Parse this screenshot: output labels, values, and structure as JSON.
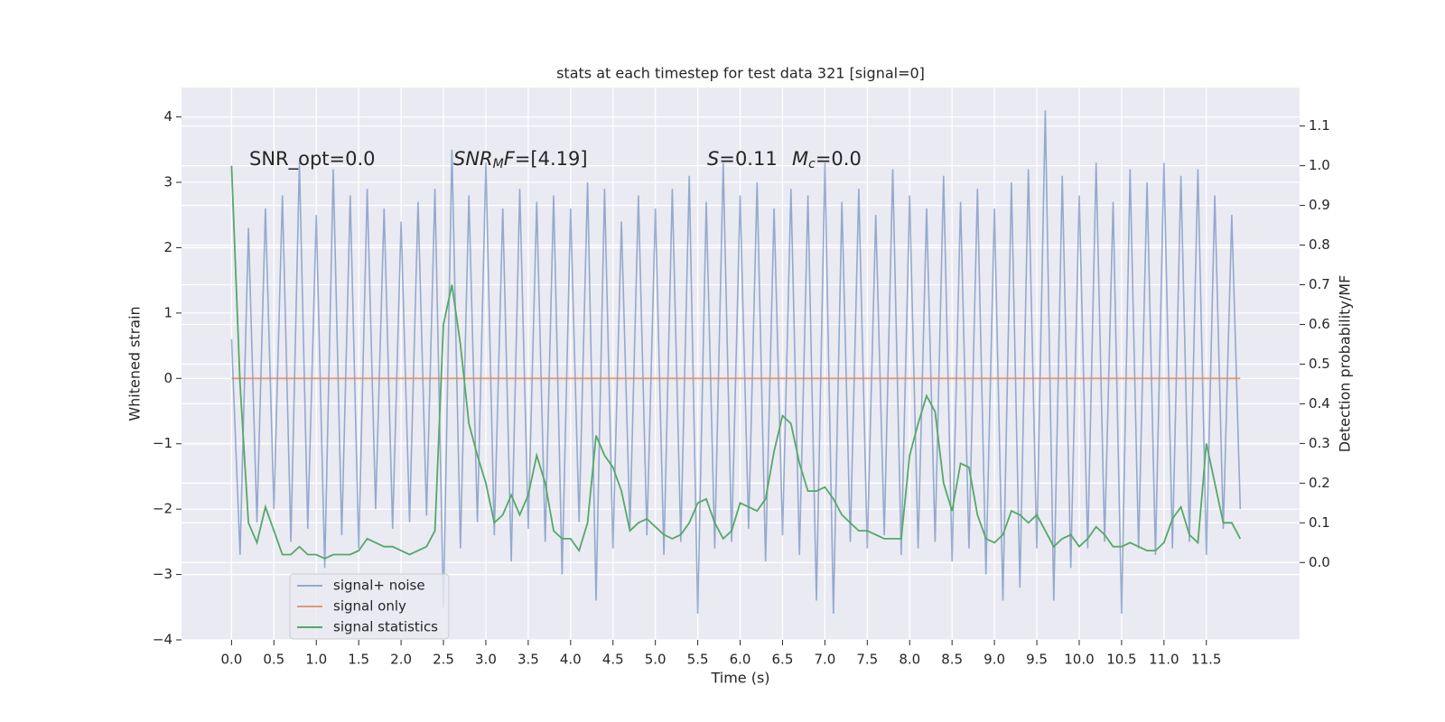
{
  "chart_data": {
    "type": "line",
    "title": "stats at each timestep for test data 321 [signal=0]",
    "xlabel": "Time (s)",
    "ylabel": "Whitened strain",
    "y2label": "Detection probability/MF",
    "annotations": [
      [
        {
          "text": "SNR_opt=0.0"
        }
      ],
      [
        {
          "text": "SNR",
          "style": "italic"
        },
        {
          "text": "M",
          "style": "sub"
        },
        {
          "text": "F",
          "style": "italic"
        },
        {
          "text": "=[4.19]"
        }
      ],
      [
        {
          "text": "S",
          "style": "italic"
        },
        {
          "text": "=0.11"
        }
      ],
      [
        {
          "text": "M",
          "style": "italic"
        },
        {
          "text": "c",
          "style": "sub"
        },
        {
          "text": "=0.0"
        }
      ]
    ],
    "x": [
      0.0,
      0.1,
      0.2,
      0.3,
      0.4,
      0.5,
      0.6,
      0.7,
      0.8,
      0.9,
      1.0,
      1.1,
      1.2,
      1.3,
      1.4,
      1.5,
      1.6,
      1.7,
      1.8,
      1.9,
      2.0,
      2.1,
      2.2,
      2.3,
      2.4,
      2.5,
      2.6,
      2.7,
      2.8,
      2.9,
      3.0,
      3.1,
      3.2,
      3.3,
      3.4,
      3.5,
      3.6,
      3.7,
      3.8,
      3.9,
      4.0,
      4.1,
      4.2,
      4.3,
      4.4,
      4.5,
      4.6,
      4.7,
      4.8,
      4.9,
      5.0,
      5.1,
      5.2,
      5.3,
      5.4,
      5.5,
      5.6,
      5.7,
      5.8,
      5.9,
      6.0,
      6.1,
      6.2,
      6.3,
      6.4,
      6.5,
      6.6,
      6.7,
      6.8,
      6.9,
      7.0,
      7.1,
      7.2,
      7.3,
      7.4,
      7.5,
      7.6,
      7.7,
      7.8,
      7.9,
      8.0,
      8.1,
      8.2,
      8.3,
      8.4,
      8.5,
      8.6,
      8.7,
      8.8,
      8.9,
      9.0,
      9.1,
      9.2,
      9.3,
      9.4,
      9.5,
      9.6,
      9.7,
      9.8,
      9.9,
      10.0,
      10.1,
      10.2,
      10.3,
      10.4,
      10.5,
      10.6,
      10.7,
      10.8,
      10.9,
      11.0,
      11.1,
      11.2,
      11.3,
      11.4,
      11.5,
      11.6,
      11.7,
      11.8,
      11.9
    ],
    "series": [
      {
        "name": "signal+ noise",
        "color": "#4c72b0",
        "opacity": 0.55,
        "values": [
          0.6,
          -2.7,
          2.3,
          -2.2,
          2.6,
          -2.0,
          2.8,
          -2.5,
          3.3,
          -2.3,
          2.5,
          -2.9,
          3.2,
          -2.4,
          2.8,
          -2.6,
          2.9,
          -2.0,
          2.6,
          -2.3,
          2.4,
          -2.2,
          2.7,
          -2.1,
          2.9,
          -3.5,
          3.5,
          -2.6,
          2.8,
          -2.2,
          3.3,
          -2.4,
          2.6,
          -2.8,
          2.9,
          -2.3,
          2.7,
          -2.5,
          2.8,
          -3.0,
          2.6,
          -2.2,
          3.0,
          -3.4,
          2.9,
          -2.6,
          2.4,
          -2.3,
          2.8,
          -2.4,
          2.6,
          -2.7,
          2.9,
          -2.5,
          3.1,
          -3.6,
          2.7,
          -2.6,
          3.3,
          -2.5,
          2.8,
          -2.3,
          3.0,
          -2.8,
          2.6,
          -2.4,
          2.9,
          -2.7,
          2.8,
          -3.4,
          3.3,
          -3.6,
          2.7,
          -2.5,
          2.9,
          -2.6,
          2.5,
          -2.4,
          3.2,
          -2.7,
          2.8,
          -2.6,
          2.6,
          -2.5,
          3.1,
          -2.8,
          2.7,
          -2.6,
          2.9,
          -3.0,
          2.6,
          -3.4,
          3.0,
          -3.2,
          3.2,
          -2.6,
          4.1,
          -3.4,
          3.1,
          -2.9,
          2.8,
          -2.6,
          3.3,
          -2.5,
          2.7,
          -3.6,
          3.2,
          -2.6,
          3.0,
          -2.7,
          3.3,
          -2.6,
          3.1,
          -2.5,
          3.2,
          -2.7,
          2.8,
          -2.3,
          2.5,
          -2.0
        ]
      },
      {
        "name": "signal only",
        "color": "#dd8452",
        "opacity": 0.8,
        "values": [
          0,
          0,
          0,
          0,
          0,
          0,
          0,
          0,
          0,
          0,
          0,
          0,
          0,
          0,
          0,
          0,
          0,
          0,
          0,
          0,
          0,
          0,
          0,
          0,
          0,
          0,
          0,
          0,
          0,
          0,
          0,
          0,
          0,
          0,
          0,
          0,
          0,
          0,
          0,
          0,
          0,
          0,
          0,
          0,
          0,
          0,
          0,
          0,
          0,
          0,
          0,
          0,
          0,
          0,
          0,
          0,
          0,
          0,
          0,
          0,
          0,
          0,
          0,
          0,
          0,
          0,
          0,
          0,
          0,
          0,
          0,
          0,
          0,
          0,
          0,
          0,
          0,
          0,
          0,
          0,
          0,
          0,
          0,
          0,
          0,
          0,
          0,
          0,
          0,
          0,
          0,
          0,
          0,
          0,
          0,
          0,
          0,
          0,
          0,
          0,
          0,
          0,
          0,
          0,
          0,
          0,
          0,
          0,
          0,
          0,
          0,
          0,
          0,
          0,
          0,
          0,
          0,
          0,
          0,
          0
        ]
      },
      {
        "name": "signal statistics",
        "color": "#55a868",
        "opacity": 1,
        "axis": "y2",
        "values": [
          1.0,
          0.45,
          0.1,
          0.05,
          0.14,
          0.08,
          0.02,
          0.02,
          0.04,
          0.02,
          0.02,
          0.01,
          0.02,
          0.02,
          0.02,
          0.03,
          0.06,
          0.05,
          0.04,
          0.04,
          0.03,
          0.02,
          0.03,
          0.04,
          0.08,
          0.6,
          0.7,
          0.55,
          0.35,
          0.27,
          0.2,
          0.1,
          0.12,
          0.17,
          0.12,
          0.17,
          0.27,
          0.2,
          0.08,
          0.06,
          0.06,
          0.03,
          0.1,
          0.32,
          0.27,
          0.24,
          0.18,
          0.08,
          0.1,
          0.11,
          0.09,
          0.07,
          0.06,
          0.07,
          0.1,
          0.15,
          0.16,
          0.1,
          0.06,
          0.08,
          0.15,
          0.14,
          0.13,
          0.16,
          0.28,
          0.37,
          0.35,
          0.25,
          0.18,
          0.18,
          0.19,
          0.16,
          0.12,
          0.1,
          0.08,
          0.08,
          0.07,
          0.06,
          0.06,
          0.06,
          0.27,
          0.35,
          0.42,
          0.38,
          0.2,
          0.13,
          0.25,
          0.24,
          0.12,
          0.06,
          0.05,
          0.07,
          0.13,
          0.12,
          0.1,
          0.12,
          0.08,
          0.04,
          0.06,
          0.07,
          0.04,
          0.06,
          0.09,
          0.07,
          0.04,
          0.04,
          0.05,
          0.04,
          0.03,
          0.03,
          0.05,
          0.11,
          0.14,
          0.07,
          0.05,
          0.3,
          0.2,
          0.1,
          0.1,
          0.06
        ]
      }
    ],
    "xlim": [
      -0.59,
      12.6
    ],
    "ylim": [
      -4,
      4.45
    ],
    "y2lim": [
      -0.195,
      1.197
    ],
    "xticks": [
      {
        "value": 0,
        "label": "0.0"
      },
      {
        "value": 0.5,
        "label": "0.5"
      },
      {
        "value": 1,
        "label": "1.0"
      },
      {
        "value": 1.5,
        "label": "1.5"
      },
      {
        "value": 2,
        "label": "2.0"
      },
      {
        "value": 2.5,
        "label": "2.5"
      },
      {
        "value": 3,
        "label": "3.0"
      },
      {
        "value": 3.5,
        "label": "3.5"
      },
      {
        "value": 4,
        "label": "4.0"
      },
      {
        "value": 4.5,
        "label": "4.5"
      },
      {
        "value": 5,
        "label": "5.0"
      },
      {
        "value": 5.5,
        "label": "5.5"
      },
      {
        "value": 6,
        "label": "6.0"
      },
      {
        "value": 6.5,
        "label": "6.5"
      },
      {
        "value": 7,
        "label": "7.0"
      },
      {
        "value": 7.5,
        "label": "7.5"
      },
      {
        "value": 8,
        "label": "8.0"
      },
      {
        "value": 8.5,
        "label": "8.5"
      },
      {
        "value": 9,
        "label": "9.0"
      },
      {
        "value": 9.5,
        "label": "9.5"
      },
      {
        "value": 10,
        "label": "10.0"
      },
      {
        "value": 10.5,
        "label": "10.5"
      },
      {
        "value": 11,
        "label": "11.0"
      },
      {
        "value": 11.5,
        "label": "11.5"
      }
    ],
    "yticks": [
      {
        "value": -4,
        "label": "−4"
      },
      {
        "value": -3,
        "label": "−3"
      },
      {
        "value": -2,
        "label": "−2"
      },
      {
        "value": -1,
        "label": "−1"
      },
      0,
      1,
      2,
      3,
      4
    ],
    "y2ticks": [
      {
        "value": 0,
        "label": "0.0"
      },
      {
        "value": 0.1,
        "label": "0.1"
      },
      {
        "value": 0.2,
        "label": "0.2"
      },
      {
        "value": 0.3,
        "label": "0.3"
      },
      {
        "value": 0.4,
        "label": "0.4"
      },
      {
        "value": 0.5,
        "label": "0.5"
      },
      {
        "value": 0.6,
        "label": "0.6"
      },
      {
        "value": 0.7,
        "label": "0.7"
      },
      {
        "value": 0.8,
        "label": "0.8"
      },
      {
        "value": 0.9,
        "label": "0.9"
      },
      {
        "value": 1.0,
        "label": "1.0"
      },
      {
        "value": 1.1,
        "label": "1.1"
      }
    ],
    "grid": true,
    "legend": "lower left"
  }
}
